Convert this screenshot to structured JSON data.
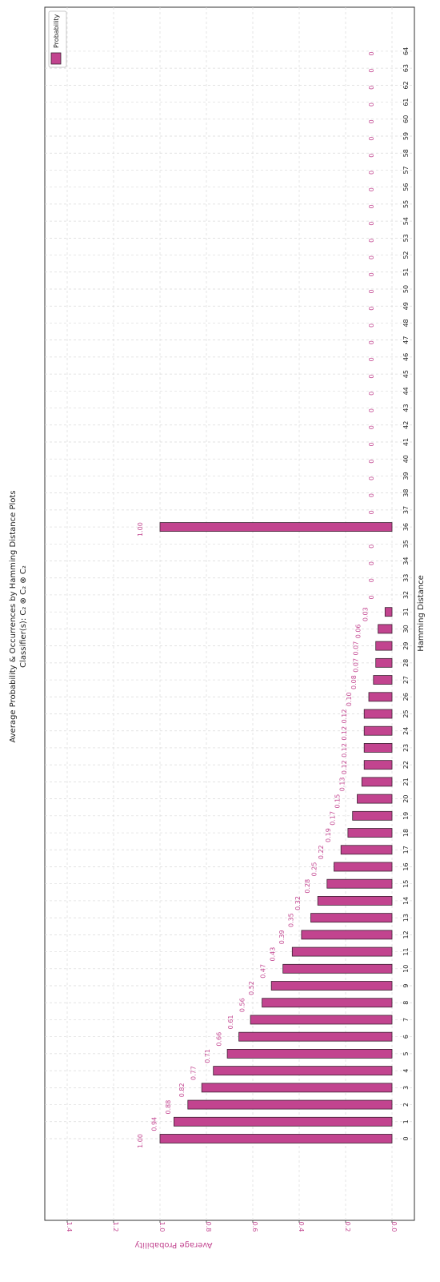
{
  "chart_data": {
    "type": "bar",
    "orientation": "rotated",
    "title": "Average Probability & Occurrences by Hamming Distance Plots",
    "subtitle": "Classifier(s): C₂ ⊗ C₂ ⊗ C₂",
    "xlabel": "Hamming Distance",
    "ylabel": "Average Probability",
    "ylim": [
      0,
      1.48
    ],
    "yticks": [
      "0.0",
      "0.2",
      "0.4",
      "0.6",
      "0.8",
      "1.0",
      "1.2",
      "1.4"
    ],
    "grid": true,
    "legend": {
      "position": "top-right",
      "entries": [
        "Probability"
      ]
    },
    "categories": [
      "0",
      "1",
      "2",
      "3",
      "4",
      "5",
      "6",
      "7",
      "8",
      "9",
      "10",
      "11",
      "12",
      "13",
      "14",
      "15",
      "16",
      "17",
      "18",
      "19",
      "20",
      "21",
      "22",
      "23",
      "24",
      "25",
      "26",
      "27",
      "28",
      "29",
      "30",
      "31",
      "32",
      "33",
      "34",
      "35",
      "36",
      "37",
      "38",
      "39",
      "40",
      "41",
      "42",
      "43",
      "44",
      "45",
      "46",
      "47",
      "48",
      "49",
      "50",
      "51",
      "52",
      "53",
      "54",
      "55",
      "56",
      "57",
      "58",
      "59",
      "60",
      "61",
      "62",
      "63",
      "64"
    ],
    "values": [
      1.0,
      0.94,
      0.88,
      0.82,
      0.77,
      0.71,
      0.66,
      0.61,
      0.56,
      0.52,
      0.47,
      0.43,
      0.39,
      0.35,
      0.32,
      0.28,
      0.25,
      0.22,
      0.19,
      0.17,
      0.15,
      0.13,
      0.12,
      0.12,
      0.12,
      0.12,
      0.1,
      0.08,
      0.07,
      0.07,
      0.06,
      0.03,
      0,
      0,
      0,
      0,
      1.0,
      0,
      0,
      0,
      0,
      0,
      0,
      0,
      0,
      0,
      0,
      0,
      0,
      0,
      0,
      0,
      0,
      0,
      0,
      0,
      0,
      0,
      0,
      0,
      0,
      0,
      0,
      0,
      0
    ],
    "value_labels": [
      "1.00",
      "0.94",
      "0.88",
      "0.82",
      "0.77",
      "0.71",
      "0.66",
      "0.61",
      "0.56",
      "0.52",
      "0.47",
      "0.43",
      "0.39",
      "0.35",
      "0.32",
      "0.28",
      "0.25",
      "0.22",
      "0.19",
      "0.17",
      "0.15",
      "0.13",
      "0.12",
      "0.12",
      "0.12",
      "0.12",
      "0.10",
      "0.08",
      "0.07",
      "0.07",
      "0.06",
      "0.03",
      "0",
      "0",
      "0",
      "0",
      "1.00",
      "0",
      "0",
      "0",
      "0",
      "0",
      "0",
      "0",
      "0",
      "0",
      "0",
      "0",
      "0",
      "0",
      "0",
      "0",
      "0",
      "0",
      "0",
      "0",
      "0",
      "0",
      "0",
      "0",
      "0",
      "0",
      "0",
      "0",
      "0"
    ],
    "colors": {
      "bar": "#c2448f",
      "bar_edge": "#3a2030",
      "label": "#c2448f",
      "grid": "#d9d9d9"
    }
  }
}
